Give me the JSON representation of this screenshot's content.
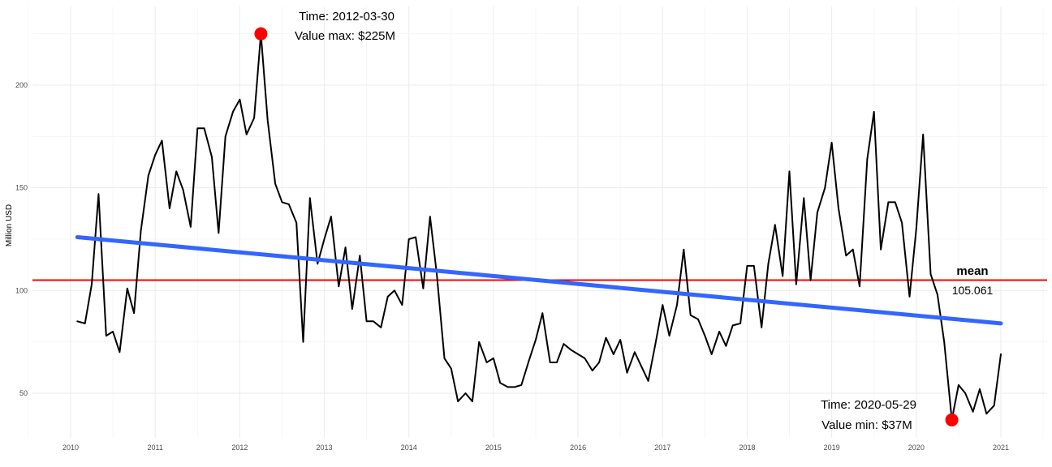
{
  "chart_data": {
    "type": "line",
    "title": "",
    "xlabel": "",
    "ylabel": "Million USD",
    "xlim": [
      2009.6,
      2021.5
    ],
    "ylim": [
      30,
      230
    ],
    "x_ticks": [
      2010,
      2011,
      2012,
      2013,
      2014,
      2015,
      2016,
      2017,
      2018,
      2019,
      2020,
      2021
    ],
    "x_tick_labels": [
      "2010",
      "2011",
      "2012",
      "2013",
      "2014",
      "2015",
      "2016",
      "2017",
      "2018",
      "2019",
      "2020",
      "2021"
    ],
    "y_ticks": [
      50,
      100,
      150,
      200
    ],
    "y_tick_labels": [
      "50",
      "100",
      "150",
      "200"
    ],
    "grid": true,
    "series": [
      {
        "role": "observed",
        "color": "#000000",
        "x": [
          2010.08,
          2010.17,
          2010.25,
          2010.33,
          2010.42,
          2010.5,
          2010.58,
          2010.67,
          2010.75,
          2010.83,
          2010.92,
          2011.0,
          2011.08,
          2011.17,
          2011.25,
          2011.33,
          2011.42,
          2011.5,
          2011.58,
          2011.67,
          2011.75,
          2011.83,
          2011.92,
          2012.0,
          2012.08,
          2012.17,
          2012.25,
          2012.33,
          2012.42,
          2012.5,
          2012.58,
          2012.67,
          2012.75,
          2012.83,
          2012.92,
          2013.0,
          2013.08,
          2013.17,
          2013.25,
          2013.33,
          2013.42,
          2013.5,
          2013.58,
          2013.67,
          2013.75,
          2013.83,
          2013.92,
          2014.0,
          2014.08,
          2014.17,
          2014.25,
          2014.33,
          2014.42,
          2014.5,
          2014.58,
          2014.67,
          2014.75,
          2014.83,
          2014.92,
          2015.0,
          2015.08,
          2015.17,
          2015.25,
          2015.33,
          2015.42,
          2015.5,
          2015.58,
          2015.67,
          2015.75,
          2015.83,
          2015.92,
          2016.0,
          2016.08,
          2016.17,
          2016.25,
          2016.33,
          2016.42,
          2016.5,
          2016.58,
          2016.67,
          2016.75,
          2016.83,
          2016.92,
          2017.0,
          2017.08,
          2017.17,
          2017.25,
          2017.33,
          2017.42,
          2017.5,
          2017.58,
          2017.67,
          2017.75,
          2017.83,
          2017.92,
          2018.0,
          2018.08,
          2018.17,
          2018.25,
          2018.33,
          2018.42,
          2018.5,
          2018.58,
          2018.67,
          2018.75,
          2018.83,
          2018.92,
          2019.0,
          2019.08,
          2019.17,
          2019.25,
          2019.33,
          2019.42,
          2019.5,
          2019.58,
          2019.67,
          2019.75,
          2019.83,
          2019.92,
          2020.0,
          2020.08,
          2020.17,
          2020.25,
          2020.33,
          2020.42,
          2020.5,
          2020.58,
          2020.67,
          2020.75,
          2020.83,
          2020.92,
          2021.0
        ],
        "y": [
          85,
          84,
          103,
          147,
          78,
          80,
          70,
          101,
          89,
          129,
          156,
          166,
          173,
          140,
          158,
          149,
          131,
          179,
          179,
          165,
          128,
          175,
          187,
          193,
          176,
          184,
          225,
          183,
          152,
          143,
          142,
          133,
          75,
          145,
          113,
          125,
          136,
          102,
          121,
          91,
          117,
          85,
          85,
          82,
          97,
          100,
          93,
          125,
          126,
          101,
          136,
          108,
          67,
          62,
          46,
          50,
          46,
          75,
          65,
          67,
          55,
          53,
          53,
          54,
          66,
          76,
          89,
          65,
          65,
          74,
          71,
          69,
          67,
          61,
          65,
          77,
          69,
          76,
          60,
          70,
          63,
          56,
          75,
          93,
          78,
          93,
          120,
          88,
          86,
          78,
          69,
          80,
          73,
          83,
          84,
          112,
          112,
          82,
          113,
          132,
          107,
          158,
          103,
          145,
          105,
          138,
          150,
          172,
          140,
          117,
          120,
          102,
          164,
          187,
          120,
          143,
          143,
          133,
          97,
          130,
          176,
          108,
          98,
          75,
          37,
          54,
          50,
          41,
          52,
          40,
          44,
          69
        ]
      },
      {
        "role": "trend",
        "color": "#3366ff",
        "x": [
          2010.08,
          2021.0
        ],
        "y": [
          126,
          84
        ]
      }
    ],
    "mean_line": {
      "value": 105.061,
      "color": "#ff0000"
    },
    "highlights": [
      {
        "x": 2012.25,
        "y": 225,
        "color": "#ff0000"
      },
      {
        "x": 2020.42,
        "y": 37,
        "color": "#ff0000"
      }
    ],
    "annotations": {
      "max_time": "Time: 2012-03-30",
      "max_value": "Value max: $225M",
      "min_time": "Time: 2020-05-29",
      "min_value": "Value min: $37M",
      "mean_title": "mean",
      "mean_value": "105.061"
    }
  }
}
